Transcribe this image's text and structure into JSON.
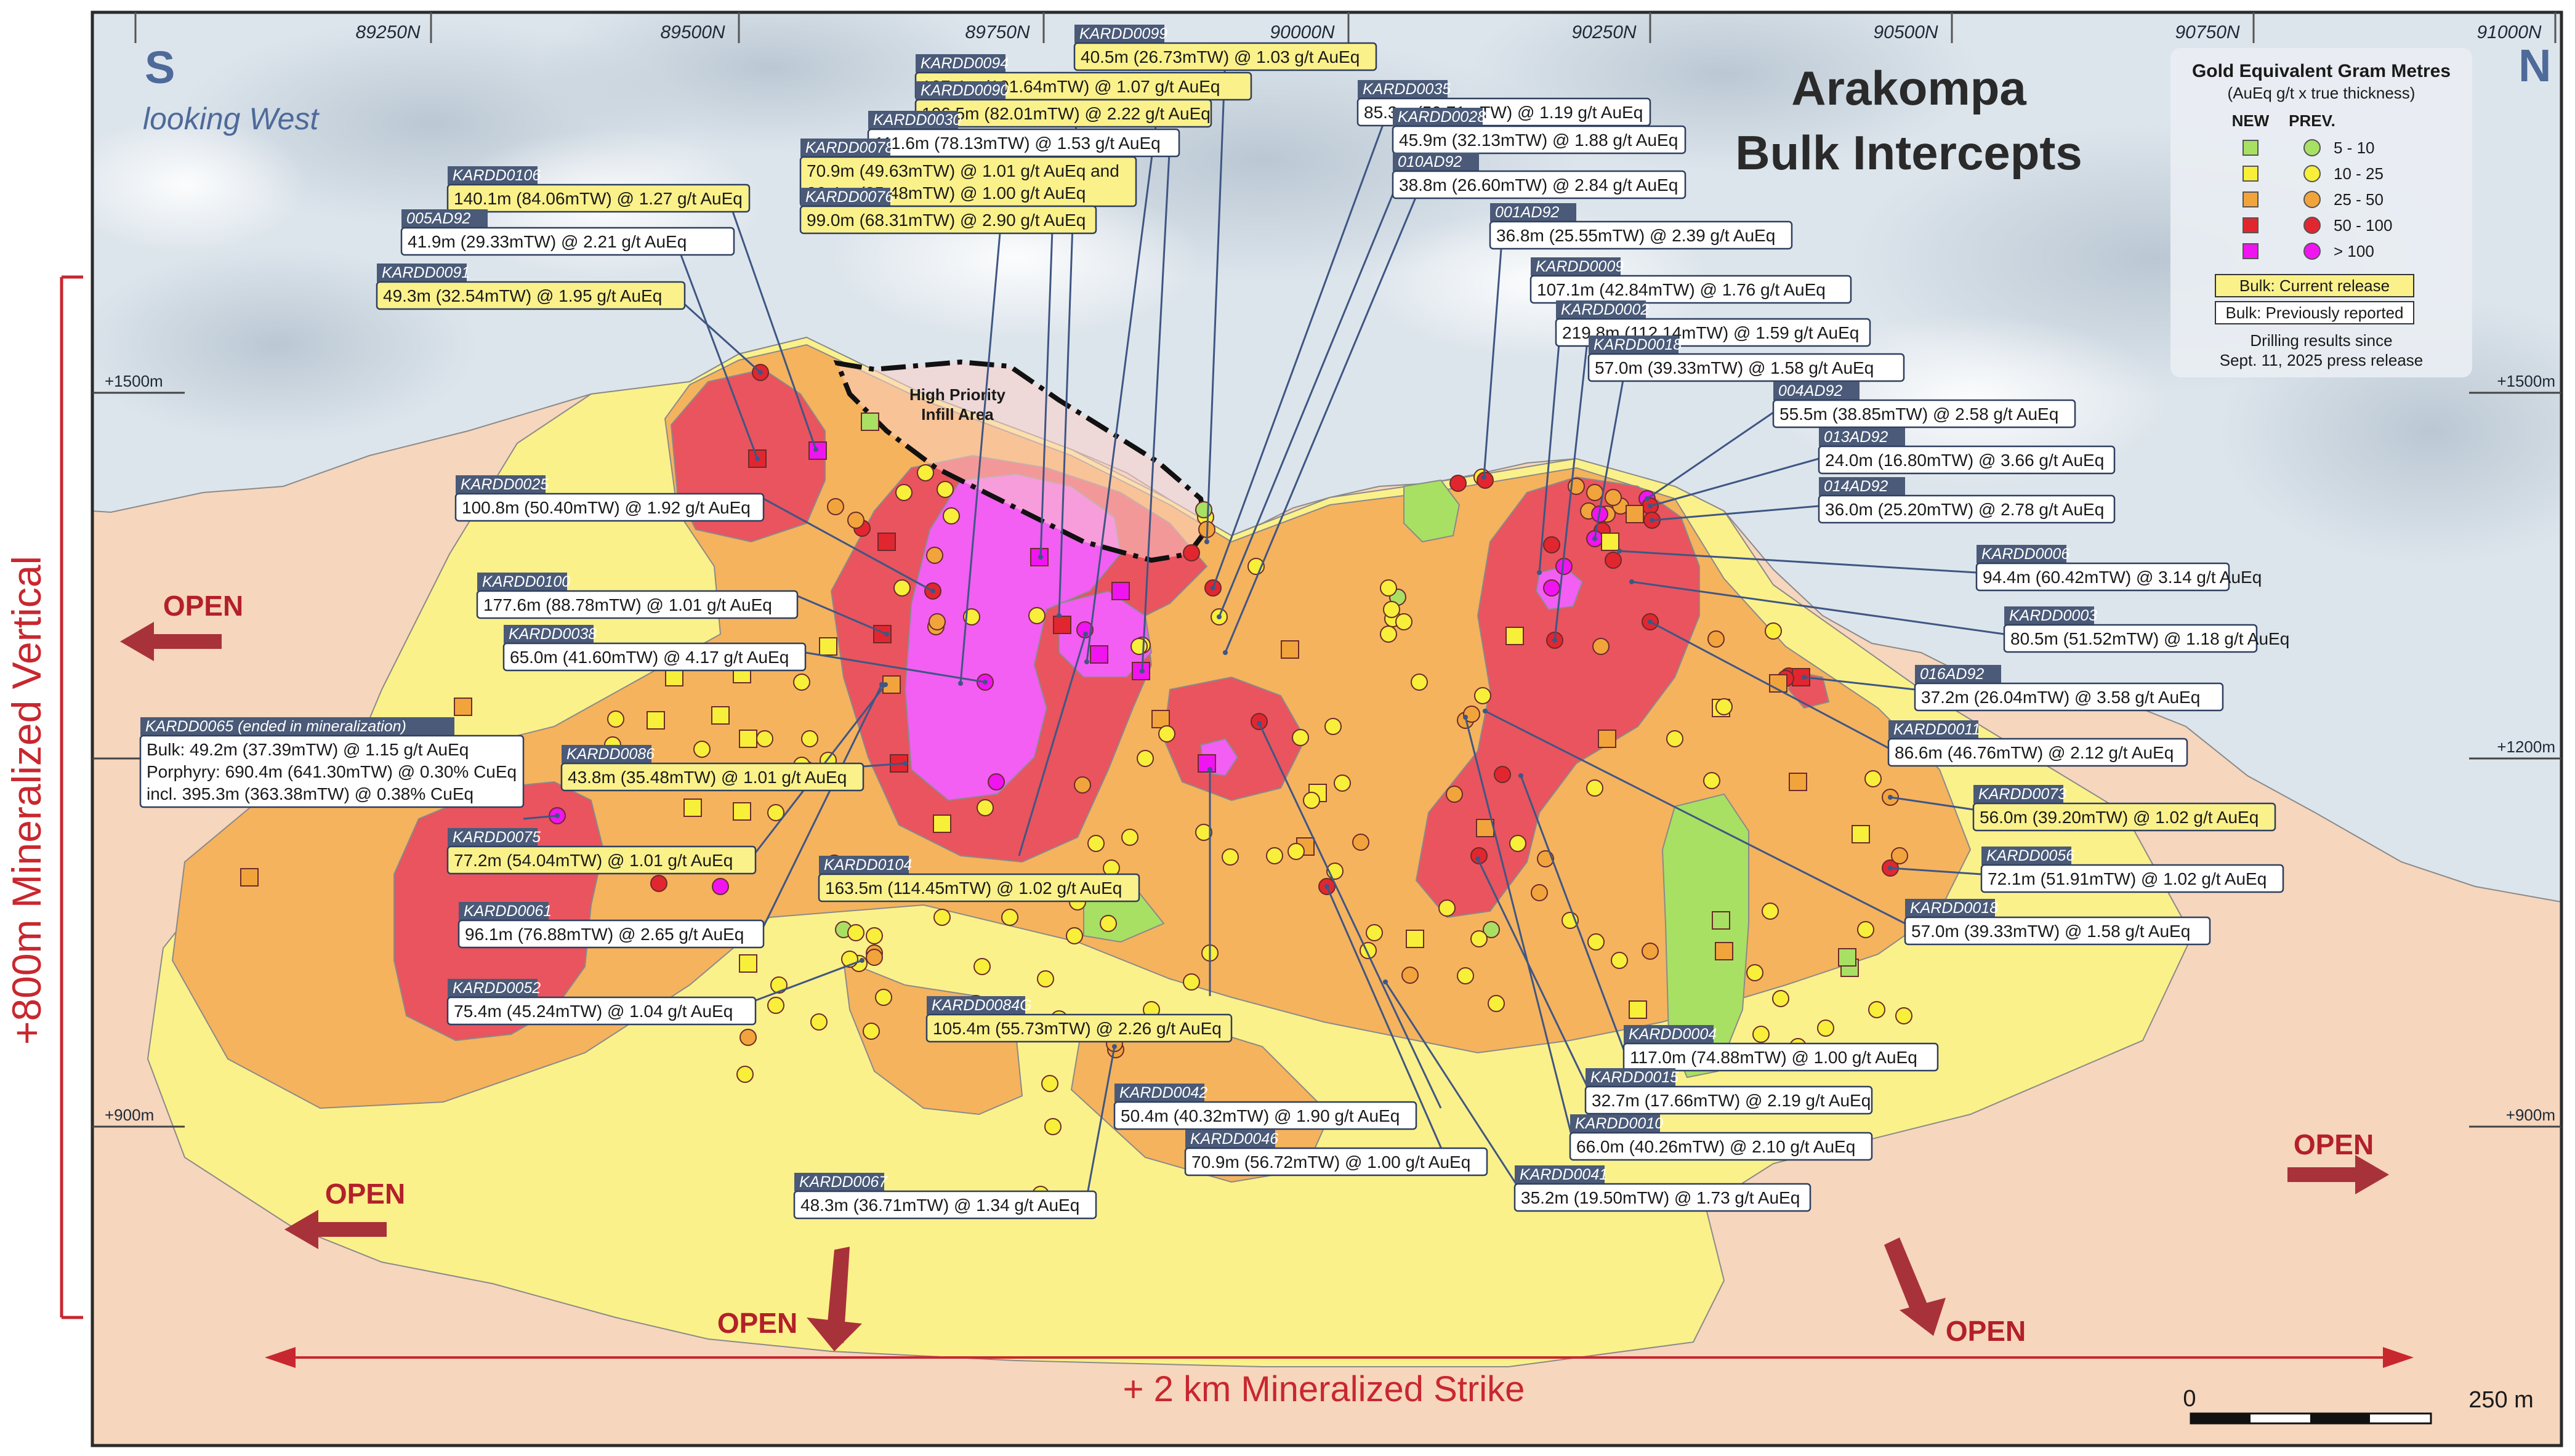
{
  "map": {
    "title_line1": "Arakompa",
    "title_line2": "Bulk Intercepts",
    "south_label": "S",
    "north_label": "N",
    "view_direction": "looking West",
    "northings": [
      "89250N",
      "89500N",
      "89750N",
      "90000N",
      "90250N",
      "90500N",
      "90750N",
      "91000N"
    ],
    "elevations": [
      "+1500m",
      "+1200m",
      "+900m"
    ],
    "open_label": "OPEN",
    "vertical_extent": "+800m Mineralized Vertical",
    "strike_extent": "+ 2 km Mineralized Strike",
    "infill_area_line1": "High Priority",
    "infill_area_line2": "Infill Area",
    "scale_start": "0",
    "scale_end": "250 m"
  },
  "colors": {
    "sky": "#dfe6ec",
    "ground": "#f6d6bd",
    "zone_5_10": "#a8e063",
    "zone_10_25": "#fbf18a",
    "zone_25_50": "#f5b35e",
    "zone_50_100": "#e9545e",
    "zone_gt_100": "#f25ff2",
    "current_release_box": "#fbf18a",
    "id_tag": "#4a5a78",
    "leader": "#3f5684",
    "accent_red": "#c8272f"
  },
  "legend": {
    "title": "Gold Equivalent Gram Metres",
    "subtitle": "(AuEq g/t x true thickness)",
    "col_new": "NEW",
    "col_prev": "PREV.",
    "items": [
      {
        "label": "5 - 10",
        "color": "#a8e063"
      },
      {
        "label": "10 - 25",
        "color": "#f7ef3a"
      },
      {
        "label": "25 - 50",
        "color": "#f2a43c"
      },
      {
        "label": "50 - 100",
        "color": "#e2262f"
      },
      {
        "label": "> 100",
        "color": "#f014f0"
      }
    ],
    "current_release": "Bulk: Current release",
    "previously_reported": "Bulk: Previously reported",
    "note_line1": "Drilling results since",
    "note_line2": "Sept. 11, 2025 press release"
  },
  "callouts": [
    {
      "id": "KARDD0099",
      "lines": [
        "40.5m (26.73mTW) @ 1.03 g/t AuEq"
      ],
      "current": true
    },
    {
      "id": "KARDD0094",
      "lines": [
        "137.4m (101.64mTW) @ 1.07 g/t AuEq"
      ],
      "current": true
    },
    {
      "id": "KARDD0090",
      "lines": [
        "106.5m (82.01mTW) @ 2.22 g/t AuEq"
      ],
      "current": true
    },
    {
      "id": "KARDD0030",
      "lines": [
        "111.6m (78.13mTW) @ 1.53 g/t AuEq"
      ],
      "current": false
    },
    {
      "id": "KARDD0078",
      "lines": [
        "70.9m (49.63mTW) @ 1.01 g/t AuEq and",
        "36.4m (25.48mTW) @ 1.00 g/t AuEq"
      ],
      "current": true
    },
    {
      "id": "KARDD0076",
      "lines": [
        "99.0m (68.31mTW) @ 2.90 g/t AuEq"
      ],
      "current": true
    },
    {
      "id": "KARDD0106",
      "lines": [
        "140.1m (84.06mTW) @ 1.27 g/t AuEq"
      ],
      "current": true
    },
    {
      "id": "005AD92",
      "lines": [
        "41.9m (29.33mTW) @ 2.21 g/t AuEq"
      ],
      "current": false
    },
    {
      "id": "KARDD0091",
      "lines": [
        "49.3m (32.54mTW) @ 1.95 g/t AuEq"
      ],
      "current": true
    },
    {
      "id": "KARDD0035",
      "lines": [
        "85.3m (59.71mTW) @ 1.19 g/t AuEq"
      ],
      "current": false
    },
    {
      "id": "KARDD0028",
      "lines": [
        "45.9m (32.13mTW) @ 1.88 g/t AuEq"
      ],
      "current": false
    },
    {
      "id": "010AD92",
      "lines": [
        "38.8m (26.60mTW) @ 2.84 g/t AuEq"
      ],
      "current": false
    },
    {
      "id": "001AD92",
      "lines": [
        "36.8m (25.55mTW) @ 2.39 g/t AuEq"
      ],
      "current": false
    },
    {
      "id": "KARDD0009",
      "lines": [
        "107.1m (42.84mTW) @ 1.76 g/t AuEq"
      ],
      "current": false
    },
    {
      "id": "KARDD0002",
      "lines": [
        "219.8m (112.14mTW) @ 1.59 g/t AuEq"
      ],
      "current": false
    },
    {
      "id": "KARDD0018",
      "lines": [
        "57.0m (39.33mTW) @ 1.58 g/t AuEq"
      ],
      "current": false
    },
    {
      "id": "004AD92",
      "lines": [
        "55.5m (38.85mTW) @ 2.58 g/t AuEq"
      ],
      "current": false
    },
    {
      "id": "013AD92",
      "lines": [
        "24.0m (16.80mTW) @ 3.66 g/t AuEq"
      ],
      "current": false
    },
    {
      "id": "014AD92",
      "lines": [
        "36.0m (25.20mTW) @ 2.78 g/t AuEq"
      ],
      "current": false
    },
    {
      "id": "KARDD0025",
      "lines": [
        "100.8m (50.40mTW) @ 1.92 g/t AuEq"
      ],
      "current": false
    },
    {
      "id": "KARDD0100",
      "lines": [
        "177.6m (88.78mTW) @ 1.01 g/t AuEq"
      ],
      "current": false
    },
    {
      "id": "KARDD0038",
      "lines": [
        "65.0m (41.60mTW) @ 4.17 g/t AuEq"
      ],
      "current": false
    },
    {
      "id": "KARDD0006",
      "lines": [
        "94.4m (60.42mTW) @ 3.14 g/t AuEq"
      ],
      "current": false
    },
    {
      "id": "KARDD0003",
      "lines": [
        "80.5m (51.52mTW) @ 1.18 g/t AuEq"
      ],
      "current": false
    },
    {
      "id": "016AD92",
      "lines": [
        "37.2m (26.04mTW) @ 3.58 g/t AuEq"
      ],
      "current": false
    },
    {
      "id": "KARDD0065 (ended in mineralization)",
      "lines": [
        "Bulk: 49.2m (37.39mTW) @ 1.15 g/t AuEq",
        "Porphyry: 690.4m (641.30mTW) @ 0.30% CuEq",
        "incl. 395.3m (363.38mTW) @ 0.38% CuEq"
      ],
      "current": false
    },
    {
      "id": "KARDD0086",
      "lines": [
        "43.8m (35.48mTW) @ 1.01 g/t AuEq"
      ],
      "current": true
    },
    {
      "id": "KARDD0011",
      "lines": [
        "86.6m (46.76mTW) @ 2.12 g/t AuEq"
      ],
      "current": false
    },
    {
      "id": "KARDD0073",
      "lines": [
        "56.0m (39.20mTW) @ 1.02 g/t AuEq"
      ],
      "current": true
    },
    {
      "id": "KARDD0075",
      "lines": [
        "77.2m (54.04mTW) @ 1.01 g/t AuEq"
      ],
      "current": true
    },
    {
      "id": "KARDD0104",
      "lines": [
        "163.5m (114.45mTW) @ 1.02 g/t AuEq"
      ],
      "current": true
    },
    {
      "id": "KARDD0056",
      "lines": [
        "72.1m (51.91mTW) @ 1.02 g/t AuEq"
      ],
      "current": false
    },
    {
      "id": "KARDD0061",
      "lines": [
        "96.1m (76.88mTW) @ 2.65 g/t AuEq"
      ],
      "current": false
    },
    {
      "id": "KARDD0018",
      "lines": [
        "57.0m (39.33mTW) @ 1.58 g/t AuEq"
      ],
      "current": false
    },
    {
      "id": "KARDD0052",
      "lines": [
        "75.4m (45.24mTW) @ 1.04 g/t AuEq"
      ],
      "current": false
    },
    {
      "id": "KARDD0084G",
      "lines": [
        "105.4m (55.73mTW) @ 2.26 g/t AuEq"
      ],
      "current": true
    },
    {
      "id": "KARDD0004",
      "lines": [
        "117.0m (74.88mTW) @ 1.00 g/t AuEq"
      ],
      "current": false
    },
    {
      "id": "KARDD0015",
      "lines": [
        "32.7m (17.66mTW) @ 2.19 g/t AuEq"
      ],
      "current": false
    },
    {
      "id": "KARDD0042",
      "lines": [
        "50.4m (40.32mTW) @ 1.90 g/t AuEq"
      ],
      "current": false
    },
    {
      "id": "KARDD0010",
      "lines": [
        "66.0m (40.26mTW) @ 2.10 g/t AuEq"
      ],
      "current": false
    },
    {
      "id": "KARDD0046",
      "lines": [
        "70.9m (56.72mTW) @ 1.00 g/t AuEq"
      ],
      "current": false
    },
    {
      "id": "KARDD0041",
      "lines": [
        "35.2m (19.50mTW) @ 1.73 g/t AuEq"
      ],
      "current": false
    },
    {
      "id": "KARDD0067",
      "lines": [
        "48.3m (36.71mTW) @ 1.34 g/t AuEq"
      ],
      "current": false
    }
  ]
}
